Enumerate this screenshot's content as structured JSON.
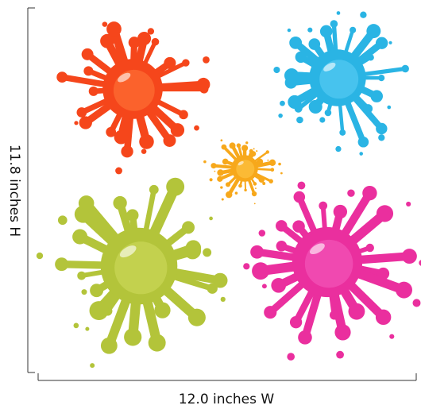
{
  "dimensions": {
    "height_label": "11.8 inches H",
    "width_label": "12.0 inches W"
  }
}
